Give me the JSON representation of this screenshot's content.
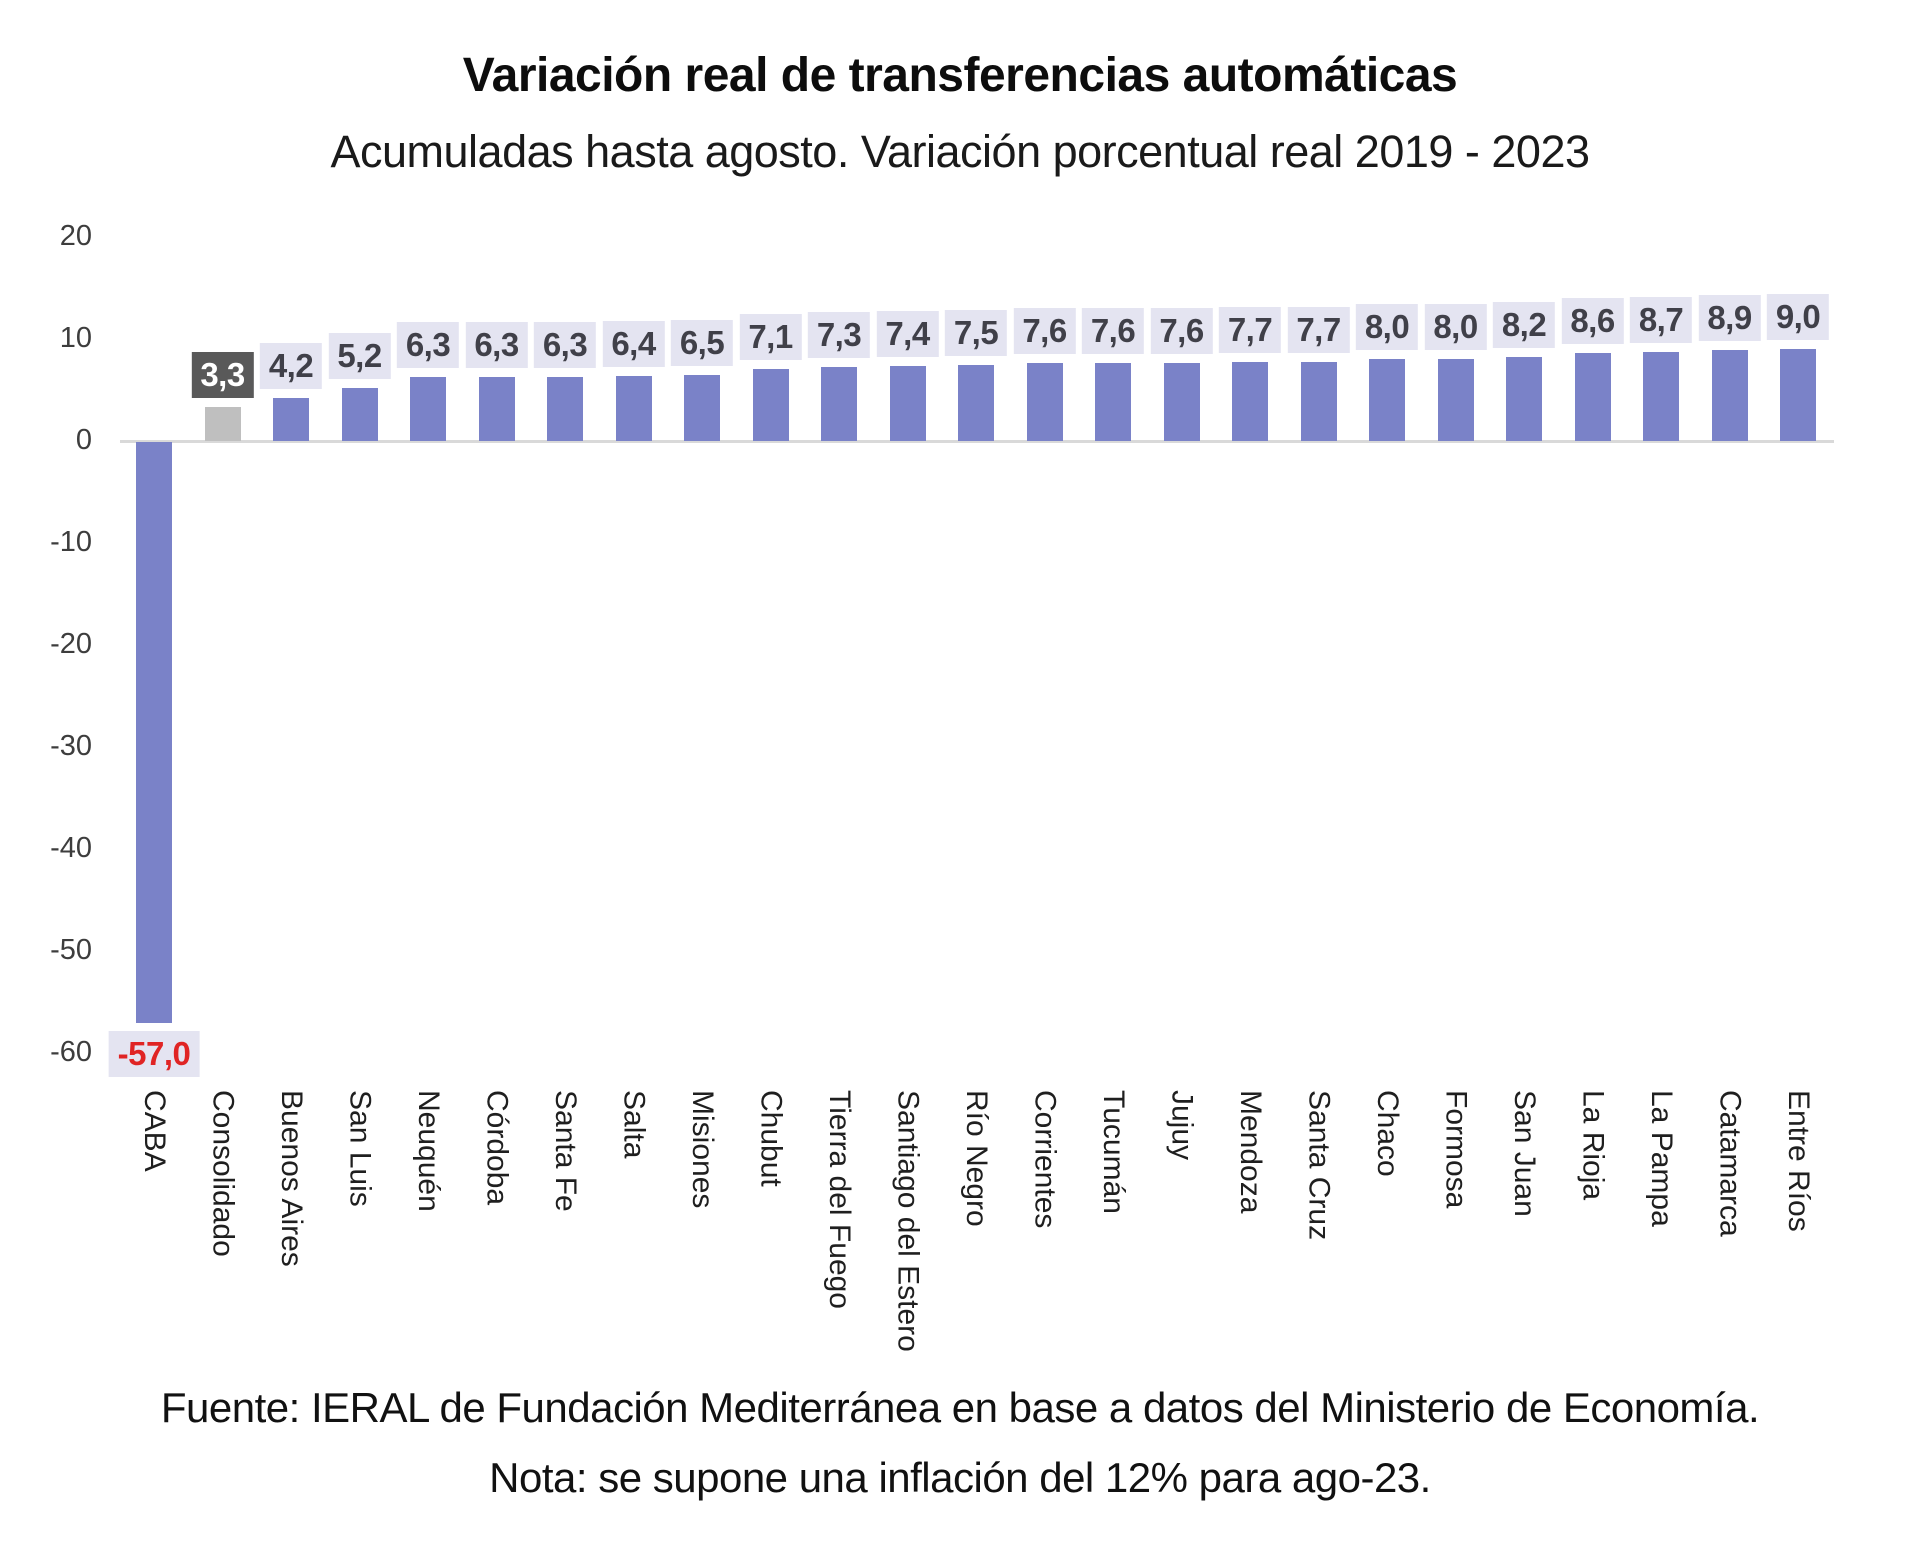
{
  "chart_data": {
    "type": "bar",
    "title": "Variación real de transferencias automáticas",
    "subtitle": "Acumuladas hasta agosto. Variación porcentual real 2019 - 2023",
    "source_line": "Fuente: IERAL de Fundación Mediterránea en base a datos del Ministerio de Economía.",
    "note_line": "Nota: se supone una inflación del 12% para ago-23.",
    "ylabel": "",
    "xlabel": "",
    "ylim": [
      -60,
      20
    ],
    "y_ticks": [
      20,
      10,
      0,
      -10,
      -20,
      -30,
      -40,
      -50,
      -60
    ],
    "grid": "off",
    "legend": "none",
    "baseline_at_zero": true,
    "categories": [
      "CABA",
      "Consolidado",
      "Buenos Aires",
      "San Luis",
      "Neuquén",
      "Córdoba",
      "Santa Fe",
      "Salta",
      "Misiones",
      "Chubut",
      "Tierra del Fuego",
      "Santiago del Estero",
      "Río Negro",
      "Corrientes",
      "Tucumán",
      "Jujuy",
      "Mendoza",
      "Santa Cruz",
      "Chaco",
      "Formosa",
      "San Juan",
      "La Rioja",
      "La Pampa",
      "Catamarca",
      "Entre Ríos"
    ],
    "values": [
      -57.0,
      3.3,
      4.2,
      5.2,
      6.3,
      6.3,
      6.3,
      6.4,
      6.5,
      7.1,
      7.3,
      7.4,
      7.5,
      7.6,
      7.6,
      7.6,
      7.7,
      7.7,
      8.0,
      8.0,
      8.2,
      8.6,
      8.7,
      8.9,
      9.0
    ],
    "bars": [
      {
        "category": "CABA",
        "value": -57.0,
        "label": "-57,0",
        "bar_color": "#7A82C8",
        "label_bg": "#E4E4F1",
        "label_color": "#E02424"
      },
      {
        "category": "Consolidado",
        "value": 3.3,
        "label": "3,3",
        "bar_color": "#BFBFBF",
        "label_bg": "#595959",
        "label_color": "#FFFFFF"
      },
      {
        "category": "Buenos Aires",
        "value": 4.2,
        "label": "4,2",
        "bar_color": "#7A82C8",
        "label_bg": "#E4E4F1",
        "label_color": "#404049"
      },
      {
        "category": "San Luis",
        "value": 5.2,
        "label": "5,2",
        "bar_color": "#7A82C8",
        "label_bg": "#E4E4F1",
        "label_color": "#404049"
      },
      {
        "category": "Neuquén",
        "value": 6.3,
        "label": "6,3",
        "bar_color": "#7A82C8",
        "label_bg": "#E4E4F1",
        "label_color": "#404049"
      },
      {
        "category": "Córdoba",
        "value": 6.3,
        "label": "6,3",
        "bar_color": "#7A82C8",
        "label_bg": "#E4E4F1",
        "label_color": "#404049"
      },
      {
        "category": "Santa Fe",
        "value": 6.3,
        "label": "6,3",
        "bar_color": "#7A82C8",
        "label_bg": "#E4E4F1",
        "label_color": "#404049"
      },
      {
        "category": "Salta",
        "value": 6.4,
        "label": "6,4",
        "bar_color": "#7A82C8",
        "label_bg": "#E4E4F1",
        "label_color": "#404049"
      },
      {
        "category": "Misiones",
        "value": 6.5,
        "label": "6,5",
        "bar_color": "#7A82C8",
        "label_bg": "#E4E4F1",
        "label_color": "#404049"
      },
      {
        "category": "Chubut",
        "value": 7.1,
        "label": "7,1",
        "bar_color": "#7A82C8",
        "label_bg": "#E4E4F1",
        "label_color": "#404049"
      },
      {
        "category": "Tierra del Fuego",
        "value": 7.3,
        "label": "7,3",
        "bar_color": "#7A82C8",
        "label_bg": "#E4E4F1",
        "label_color": "#404049"
      },
      {
        "category": "Santiago del Estero",
        "value": 7.4,
        "label": "7,4",
        "bar_color": "#7A82C8",
        "label_bg": "#E4E4F1",
        "label_color": "#404049"
      },
      {
        "category": "Río Negro",
        "value": 7.5,
        "label": "7,5",
        "bar_color": "#7A82C8",
        "label_bg": "#E4E4F1",
        "label_color": "#404049"
      },
      {
        "category": "Corrientes",
        "value": 7.6,
        "label": "7,6",
        "bar_color": "#7A82C8",
        "label_bg": "#E4E4F1",
        "label_color": "#404049"
      },
      {
        "category": "Tucumán",
        "value": 7.6,
        "label": "7,6",
        "bar_color": "#7A82C8",
        "label_bg": "#E4E4F1",
        "label_color": "#404049"
      },
      {
        "category": "Jujuy",
        "value": 7.6,
        "label": "7,6",
        "bar_color": "#7A82C8",
        "label_bg": "#E4E4F1",
        "label_color": "#404049"
      },
      {
        "category": "Mendoza",
        "value": 7.7,
        "label": "7,7",
        "bar_color": "#7A82C8",
        "label_bg": "#E4E4F1",
        "label_color": "#404049"
      },
      {
        "category": "Santa Cruz",
        "value": 7.7,
        "label": "7,7",
        "bar_color": "#7A82C8",
        "label_bg": "#E4E4F1",
        "label_color": "#404049"
      },
      {
        "category": "Chaco",
        "value": 8.0,
        "label": "8,0",
        "bar_color": "#7A82C8",
        "label_bg": "#E4E4F1",
        "label_color": "#404049"
      },
      {
        "category": "Formosa",
        "value": 8.0,
        "label": "8,0",
        "bar_color": "#7A82C8",
        "label_bg": "#E4E4F1",
        "label_color": "#404049"
      },
      {
        "category": "San Juan",
        "value": 8.2,
        "label": "8,2",
        "bar_color": "#7A82C8",
        "label_bg": "#E4E4F1",
        "label_color": "#404049"
      },
      {
        "category": "La Rioja",
        "value": 8.6,
        "label": "8,6",
        "bar_color": "#7A82C8",
        "label_bg": "#E4E4F1",
        "label_color": "#404049"
      },
      {
        "category": "La Pampa",
        "value": 8.7,
        "label": "8,7",
        "bar_color": "#7A82C8",
        "label_bg": "#E4E4F1",
        "label_color": "#404049"
      },
      {
        "category": "Catamarca",
        "value": 8.9,
        "label": "8,9",
        "bar_color": "#7A82C8",
        "label_bg": "#E4E4F1",
        "label_color": "#404049"
      },
      {
        "category": "Entre Ríos",
        "value": 9.0,
        "label": "9,0",
        "bar_color": "#7A82C8",
        "label_bg": "#E4E4F1",
        "label_color": "#404049"
      }
    ],
    "colors": {
      "default_bar": "#7A82C8",
      "consolidado_bar": "#BFBFBF",
      "value_label_bg": "#E4E4F1",
      "value_label_text": "#404049",
      "consolidado_label_bg": "#595959",
      "consolidado_label_text": "#FFFFFF",
      "negative_label_text": "#E02424",
      "axis_baseline": "#D9D9D9",
      "tick_text": "#3D3D3D"
    }
  }
}
